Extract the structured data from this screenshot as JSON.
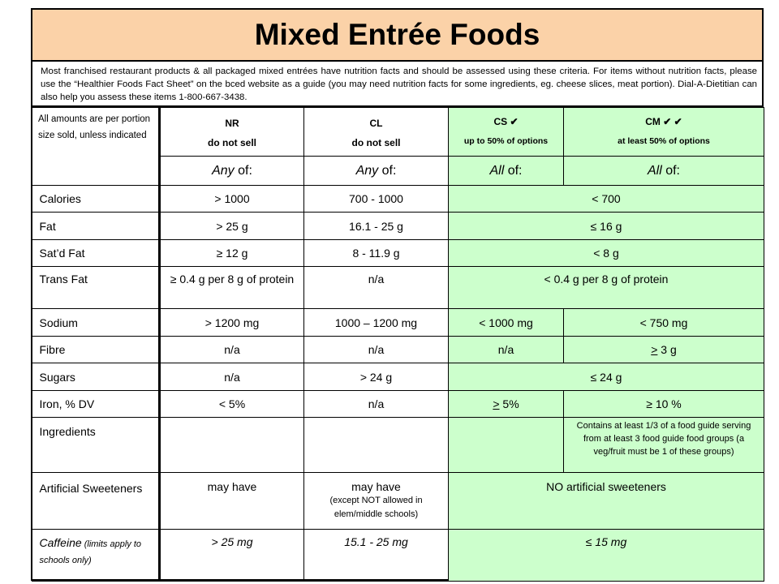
{
  "title": "Mixed Entrée Foods",
  "intro": "Most franchised restaurant products & all packaged mixed entrées have nutrition facts and should be assessed using these criteria. For items without nutrition facts, please use the “Healthier Foods Fact Sheet” on the bced website as a guide (you may need nutrition facts for some ingredients, eg. cheese slices, meat portion). Dial-A-Dietitian can also help you assess these items 1-800-667-3438.",
  "header": {
    "note": "All amounts are per portion size sold, unless indicated",
    "nr": {
      "code": "NR",
      "sub": "do not sell"
    },
    "cl": {
      "code": "CL",
      "sub": "do not sell"
    },
    "cs": {
      "code": "CS ✔",
      "sub": "up to 50% of options"
    },
    "cm": {
      "code": "CM ✔ ✔",
      "sub": "at least 50% of options"
    },
    "any1": "Any",
    "of1": " of:",
    "any2": "Any",
    "of2": " of:",
    "all1": "All",
    "of3": " of:",
    "all2": "All",
    "of4": " of:"
  },
  "rows": {
    "calories": {
      "label": "Calories",
      "nr": "> 1000",
      "cl": "700 - 1000",
      "cscm": "< 700"
    },
    "fat": {
      "label": "Fat",
      "nr": "> 25 g",
      "cl": "16.1 - 25 g",
      "cscm": "≤ 16 g"
    },
    "satfat": {
      "label": "Sat’d Fat",
      "nr": "≥ 12 g",
      "cl": "8 - 11.9 g",
      "cscm": "< 8 g"
    },
    "transfat": {
      "label": "Trans Fat",
      "nr": "≥ 0.4 g per 8 g of protein",
      "cl": "n/a",
      "cscm": "< 0.4 g per 8 g of protein"
    },
    "sodium": {
      "label": "Sodium",
      "nr": "> 1200 mg",
      "cl": "1000 – 1200 mg",
      "cs": "< 1000 mg",
      "cm": "< 750 mg"
    },
    "fibre": {
      "label": "Fibre",
      "nr": "n/a",
      "cl": "n/a",
      "cs": "n/a",
      "cm_sym": ">",
      "cm_val": " 3 g"
    },
    "sugars": {
      "label": "Sugars",
      "nr": "n/a",
      "cl": "> 24 g",
      "cscm": "≤ 24 g"
    },
    "iron": {
      "label": "Iron, % DV",
      "nr": "< 5%",
      "cl": "n/a",
      "cs_sym": ">",
      "cs_val": " 5%",
      "cm": "≥ 10 %"
    },
    "ingredients": {
      "label": "Ingredients",
      "nr": "",
      "cl": "",
      "cs": "",
      "cm": "Contains at least 1/3 of a food guide serving from at least 3 food guide food groups (a veg/fruit must be 1 of these groups)"
    },
    "sweeteners": {
      "label": "Artificial Sweeteners",
      "nr": "may have",
      "cl": "may have",
      "cl_note": "(except NOT allowed in elem/middle schools)",
      "cscm": "NO artificial sweeteners"
    },
    "caffeine": {
      "label": "Caffeine",
      "label_note": " (limits apply to schools only)",
      "nr": "> 25 mg",
      "cl": "15.1 - 25 mg",
      "cscm": "≤ 15 mg"
    }
  },
  "colors": {
    "title_bg": "#fbd2a8",
    "green": "#ccffcc"
  }
}
